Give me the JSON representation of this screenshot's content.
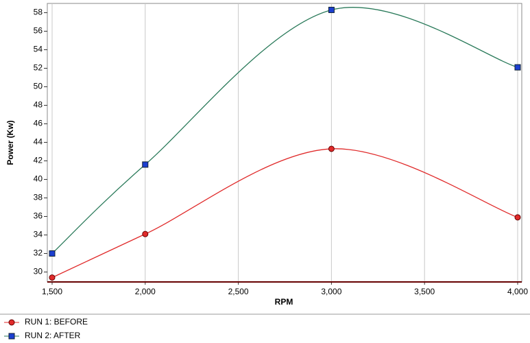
{
  "chart_data": {
    "type": "line",
    "x_label": "RPM",
    "y_label": "Power (Kw)",
    "x": [
      1500,
      2000,
      3000,
      4000
    ],
    "series": [
      {
        "name": "RUN 1: BEFORE",
        "color": "#e02a2a",
        "marker": "circle",
        "marker_color": "#e02a2a",
        "values": [
          29.4,
          34.1,
          43.3,
          35.9
        ]
      },
      {
        "name": "RUN 2: AFTER",
        "color": "#2a7a5a",
        "marker": "square",
        "marker_color": "#1c3fd0",
        "values": [
          32.0,
          41.6,
          58.3,
          52.1
        ]
      }
    ],
    "xlim": [
      1500,
      4000
    ],
    "ylim": [
      29,
      59
    ],
    "xticks": [
      {
        "value": 1500,
        "label": "1,500"
      },
      {
        "value": 2000,
        "label": "2,000"
      },
      {
        "value": 2500,
        "label": "2,500"
      },
      {
        "value": 3000,
        "label": "3,000"
      },
      {
        "value": 3500,
        "label": "3,500"
      },
      {
        "value": 4000,
        "label": "4,000"
      }
    ],
    "yticks": [
      30,
      32,
      34,
      36,
      38,
      40,
      42,
      44,
      46,
      48,
      50,
      52,
      54,
      56,
      58
    ],
    "grid": true,
    "legend": "bottom-left"
  }
}
